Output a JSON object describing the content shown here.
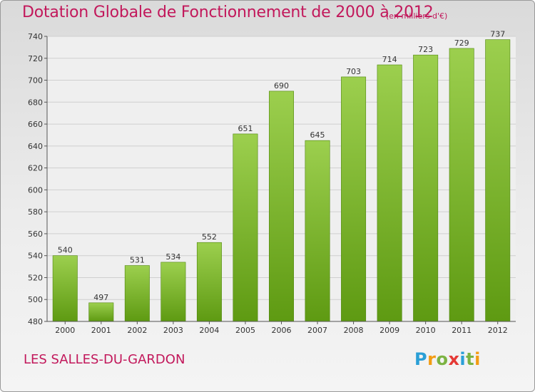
{
  "header": {
    "title": "Dotation Globale de Fonctionnement de 2000 à 2012",
    "units": "(en milliers d'€)"
  },
  "footer": {
    "place": "LES SALLES-DU-GARDON",
    "logo": "Proxiti"
  },
  "colors": {
    "bar_light": "#9ccf4e",
    "bar_dark": "#5e9a12",
    "title": "#c2185b"
  },
  "chart_data": {
    "type": "bar",
    "title": "Dotation Globale de Fonctionnement de 2000 à 2012",
    "ylabel": "(en milliers d'€)",
    "xlabel": "",
    "categories": [
      "2000",
      "2001",
      "2002",
      "2003",
      "2004",
      "2005",
      "2006",
      "2007",
      "2008",
      "2009",
      "2010",
      "2011",
      "2012"
    ],
    "values": [
      540,
      497,
      531,
      534,
      552,
      651,
      690,
      645,
      703,
      714,
      723,
      729,
      737
    ],
    "ylim": [
      480,
      740
    ],
    "yticks": [
      480,
      500,
      520,
      540,
      560,
      580,
      600,
      620,
      640,
      660,
      680,
      700,
      720,
      740
    ],
    "grid": true
  }
}
